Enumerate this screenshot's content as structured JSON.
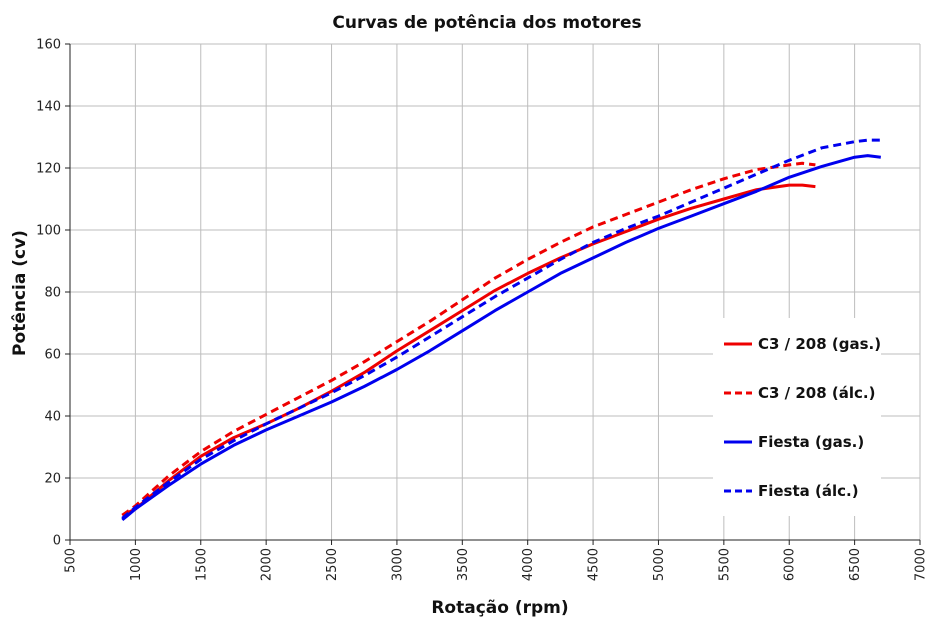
{
  "chart_data": {
    "type": "line",
    "title": "Curvas de potência dos motores",
    "xlabel": "Rotação (rpm)",
    "ylabel": "Potência (cv)",
    "xlim": [
      500,
      7000
    ],
    "ylim": [
      0,
      160
    ],
    "xticks": [
      500,
      1000,
      1500,
      2000,
      2500,
      3000,
      3500,
      4000,
      4500,
      5000,
      5500,
      6000,
      6500,
      7000
    ],
    "yticks": [
      0,
      20,
      40,
      60,
      80,
      100,
      120,
      140,
      160
    ],
    "grid": true,
    "legend_position": "right",
    "series": [
      {
        "name": "C3 / 208 (gas.)",
        "color": "#ee0000",
        "dash": "solid",
        "x": [
          900,
          1000,
          1250,
          1500,
          1750,
          2000,
          2250,
          2500,
          2750,
          3000,
          3250,
          3500,
          3750,
          4000,
          4250,
          4500,
          4750,
          5000,
          5250,
          5500,
          5750,
          6000,
          6100,
          6200
        ],
        "y": [
          8,
          10,
          19,
          27,
          33,
          37.5,
          42.5,
          48,
          54,
          61,
          67.5,
          74,
          80.5,
          86,
          91,
          95.5,
          99.5,
          103.5,
          107,
          110,
          113,
          114.5,
          114.5,
          114
        ]
      },
      {
        "name": "C3 / 208 (álc.)",
        "color": "#ee0000",
        "dash": "dashed",
        "x": [
          900,
          1000,
          1250,
          1500,
          1750,
          2000,
          2250,
          2500,
          2750,
          3000,
          3250,
          3500,
          3750,
          4000,
          4250,
          4500,
          4750,
          5000,
          5250,
          5500,
          5750,
          6000,
          6100,
          6200
        ],
        "y": [
          8,
          11,
          20.5,
          28.5,
          35,
          40.5,
          46,
          51.5,
          57.5,
          64,
          70.5,
          77.5,
          84.5,
          90.5,
          96,
          101,
          105,
          109,
          113,
          116.5,
          119.5,
          121,
          121.5,
          121
        ]
      },
      {
        "name": "Fiesta (gas.)",
        "color": "#0000ee",
        "dash": "solid",
        "x": [
          900,
          1000,
          1250,
          1500,
          1750,
          2000,
          2250,
          2500,
          2750,
          3000,
          3250,
          3500,
          3750,
          4000,
          4250,
          4500,
          4750,
          5000,
          5250,
          5500,
          5750,
          6000,
          6250,
          6500,
          6600,
          6700
        ],
        "y": [
          6.5,
          10,
          17.5,
          24.5,
          30.5,
          35.5,
          40,
          44.5,
          49.5,
          55,
          61,
          67.5,
          74,
          80,
          86,
          91,
          96,
          100.5,
          104.5,
          108.5,
          112.5,
          117,
          120.5,
          123.5,
          124,
          123.5
        ]
      },
      {
        "name": "Fiesta (álc.)",
        "color": "#0000ee",
        "dash": "dashed",
        "x": [
          900,
          1000,
          1250,
          1500,
          1750,
          2000,
          2250,
          2500,
          2750,
          3000,
          3250,
          3500,
          3750,
          4000,
          4250,
          4500,
          4750,
          5000,
          5250,
          5500,
          5750,
          6000,
          6250,
          6500,
          6600,
          6700
        ],
        "y": [
          7,
          10.5,
          18.5,
          26,
          32,
          37.5,
          42.5,
          47.5,
          53,
          59,
          65.5,
          72,
          78.5,
          84.5,
          90.5,
          96,
          100.5,
          104.5,
          109,
          113.5,
          118,
          122.5,
          126.5,
          128.5,
          129,
          129
        ]
      }
    ]
  }
}
